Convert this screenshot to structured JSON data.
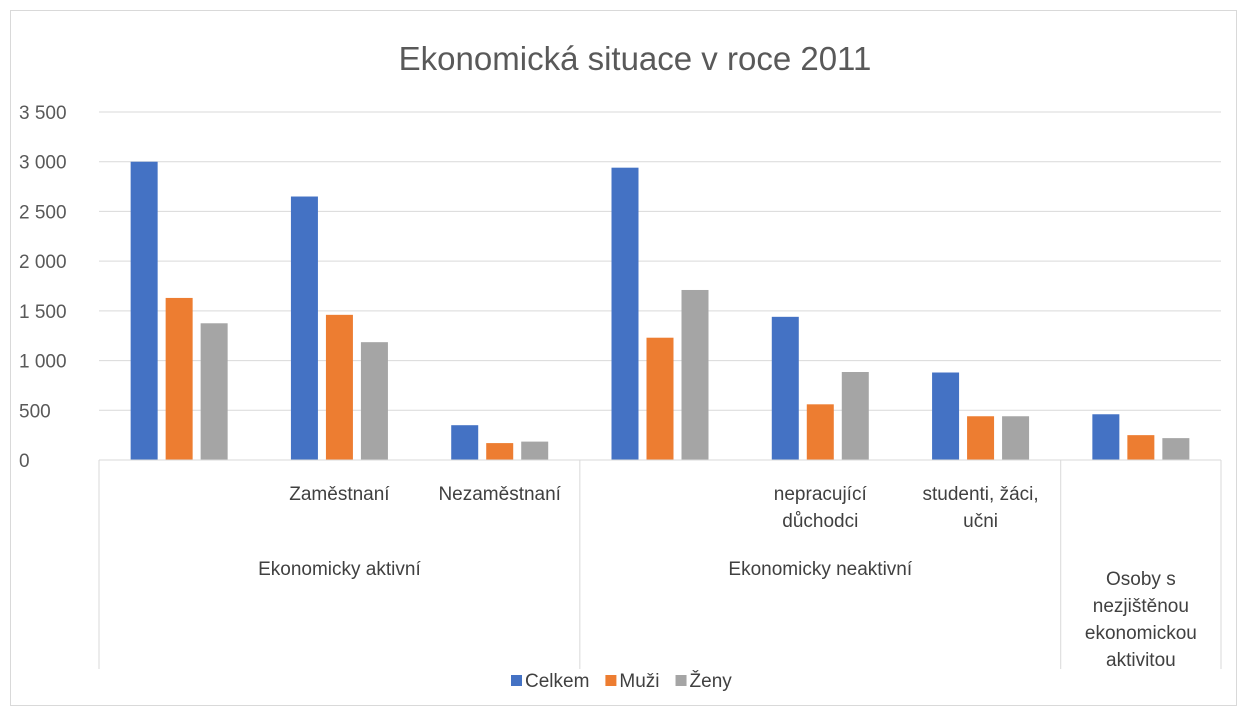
{
  "chart_data": {
    "type": "bar",
    "title": "Ekonomická situace v roce 2011",
    "ylim": [
      0,
      3500
    ],
    "yticks": [
      0,
      500,
      1000,
      1500,
      2000,
      2500,
      3000,
      3500
    ],
    "ytick_labels": [
      "0",
      "500",
      "1 000",
      "1 500",
      "2 000",
      "2 500",
      "3 000",
      "3 500"
    ],
    "grid": true,
    "legend_position": "bottom",
    "categories": [
      {
        "label": "",
        "lines": []
      },
      {
        "label": "Zaměstnaní",
        "lines": [
          "Zaměstnaní"
        ]
      },
      {
        "label": "Nezaměstnaní",
        "lines": [
          "Nezaměstnaní"
        ]
      },
      {
        "label": "",
        "lines": []
      },
      {
        "label": "nepracující důchodci",
        "lines": [
          "nepracující",
          "důchodci"
        ]
      },
      {
        "label": "studenti, žáci, učni",
        "lines": [
          "studenti, žáci,",
          "učni"
        ]
      },
      {
        "label": "",
        "lines": []
      }
    ],
    "groups": [
      {
        "label": "Ekonomicky aktivní",
        "lines": [
          "Ekonomicky aktivní"
        ],
        "span": [
          0,
          3
        ]
      },
      {
        "label": "Ekonomicky neaktivní",
        "lines": [
          "Ekonomicky neaktivní"
        ],
        "span": [
          3,
          6
        ]
      },
      {
        "label": "Osoby s nezjištěnou ekonomickou aktivitou",
        "lines": [
          "Osoby s",
          "nezjištěnou",
          "ekonomickou",
          "aktivitou"
        ],
        "span": [
          6,
          7
        ]
      }
    ],
    "series": [
      {
        "name": "Celkem",
        "color": "#4472C4",
        "values": [
          3000,
          2650,
          350,
          2940,
          1440,
          880,
          460
        ]
      },
      {
        "name": "Muži",
        "color": "#ED7D31",
        "values": [
          1630,
          1460,
          170,
          1230,
          560,
          440,
          250
        ]
      },
      {
        "name": "Ženy",
        "color": "#A5A5A5",
        "values": [
          1375,
          1185,
          185,
          1710,
          885,
          440,
          220
        ]
      }
    ]
  }
}
